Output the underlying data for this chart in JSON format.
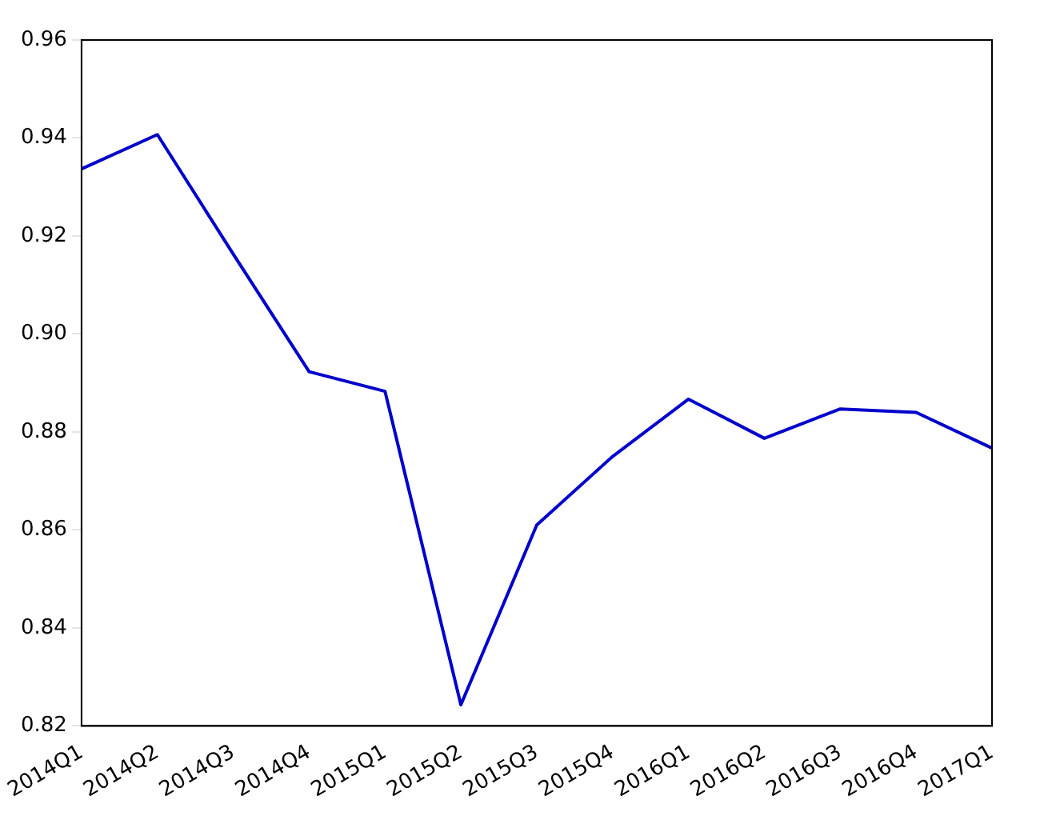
{
  "chart_data": {
    "type": "line",
    "categories": [
      "2014Q1",
      "2014Q2",
      "2014Q3",
      "2014Q4",
      "2015Q1",
      "2015Q2",
      "2015Q3",
      "2015Q4",
      "2016Q1",
      "2016Q2",
      "2016Q3",
      "2016Q4",
      "2017Q1"
    ],
    "series": [
      {
        "color": "#0000cc",
        "values": [
          0.9337,
          0.9407,
          0.9163,
          0.8923,
          0.8883,
          0.8243,
          0.861,
          0.875,
          0.8867,
          0.8787,
          0.8847,
          0.884,
          0.8767
        ]
      }
    ],
    "ylim": [
      0.82,
      0.96
    ],
    "yticks": [
      {
        "value": 0.82,
        "label": "0.82"
      },
      {
        "value": 0.84,
        "label": "0.84"
      },
      {
        "value": 0.86,
        "label": "0.86"
      },
      {
        "value": 0.88,
        "label": "0.88"
      },
      {
        "value": 0.9,
        "label": "0.90"
      },
      {
        "value": 0.92,
        "label": "0.92"
      },
      {
        "value": 0.94,
        "label": "0.94"
      },
      {
        "value": 0.96,
        "label": "0.96"
      }
    ],
    "grid": false,
    "legend": false
  }
}
